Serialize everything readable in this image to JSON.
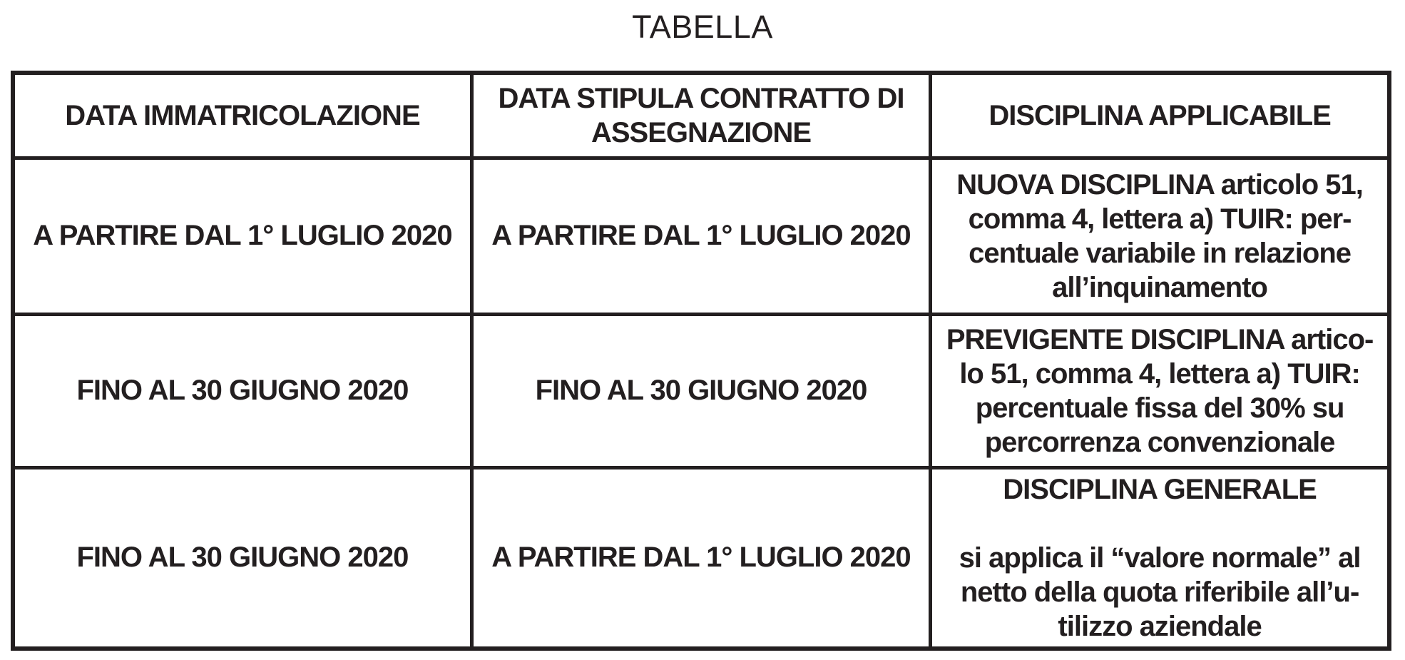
{
  "title": "TABELLA",
  "colors": {
    "text": "#231f20",
    "border": "#231f20",
    "background": "#ffffff"
  },
  "table": {
    "headers": [
      "DATA IMMATRICOLAZIONE",
      "DATA STIPULA CONTRATTO DI\nASSEGNAZIONE",
      "DISCIPLINA APPLICABILE"
    ],
    "rows": [
      [
        "A PARTIRE DAL 1° LUGLIO 2020",
        "A PARTIRE DAL 1° LUGLIO 2020",
        "NUOVA DISCIPLINA articolo 51,\ncomma 4, lettera a) TUIR: per-\ncentuale variabile in relazione\nall’inquinamento"
      ],
      [
        "FINO AL 30 GIUGNO 2020",
        "FINO AL 30 GIUGNO 2020",
        "PREVIGENTE DISCIPLINA artico-\nlo 51, comma 4, lettera a) TUIR:\npercentuale fissa del 30% su\npercorrenza convenzionale"
      ],
      [
        "FINO AL 30 GIUGNO 2020",
        "A PARTIRE DAL 1° LUGLIO 2020",
        "DISCIPLINA GENERALE\n\nsi applica il “valore normale” al\nnetto della quota riferibile all’u-\ntilizzo aziendale"
      ]
    ]
  }
}
